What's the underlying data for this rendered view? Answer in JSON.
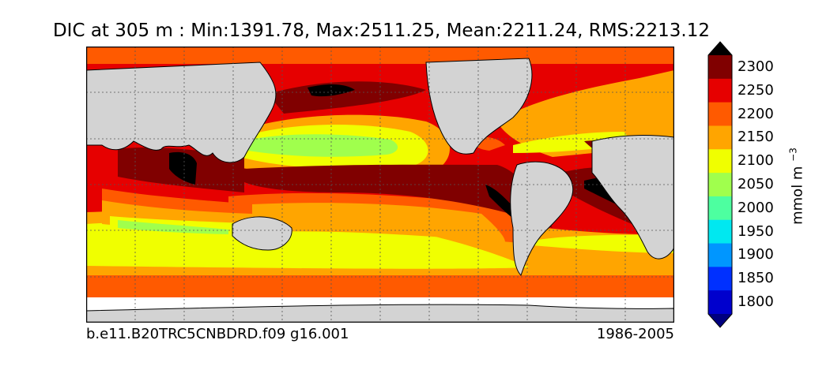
{
  "title": "DIC at 305 m : Min:1391.78, Max:2511.25, Mean:2211.24, RMS:2213.12",
  "footer": {
    "case_name": "b.e11.B20TRC5CNBDRD.f09 g16.001",
    "years": "1986-2005"
  },
  "colorbar": {
    "units_base": "mmol m",
    "units_exp": "−3",
    "ticks": [
      "2300",
      "2250",
      "2200",
      "2150",
      "2100",
      "2050",
      "2000",
      "1950",
      "1900",
      "1850",
      "1800"
    ],
    "levels": [
      {
        "upper": 1800,
        "color": "#000080"
      },
      {
        "upper": 1850,
        "color": "#0000cd"
      },
      {
        "upper": 1900,
        "color": "#0030ff"
      },
      {
        "upper": 1950,
        "color": "#0096ff"
      },
      {
        "upper": 2000,
        "color": "#00e8f0"
      },
      {
        "upper": 2050,
        "color": "#4dffa0"
      },
      {
        "upper": 2100,
        "color": "#a0ff4d"
      },
      {
        "upper": 2150,
        "color": "#f0ff00"
      },
      {
        "upper": 2200,
        "color": "#ffa500"
      },
      {
        "upper": 2250,
        "color": "#ff5a00"
      },
      {
        "upper": 2300,
        "color": "#e60000"
      },
      {
        "upper": 2350,
        "color": "#800000"
      },
      {
        "upper": 9999,
        "color": "#000000"
      }
    ]
  },
  "map": {
    "land_color": "#d3d3d3",
    "no_data_color": "#ffffff",
    "gridlines": "dotted"
  }
}
